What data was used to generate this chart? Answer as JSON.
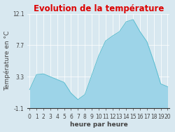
{
  "title": "Evolution de la température",
  "xlabel": "heure par heure",
  "ylabel": "Température en °C",
  "background_color": "#d8e8f0",
  "plot_bg_color": "#d8e8f0",
  "line_color": "#5bbdd0",
  "fill_color": "#9dd4e8",
  "title_color": "#dd0000",
  "axis_label_color": "#444444",
  "tick_color": "#444444",
  "grid_color": "#ffffff",
  "ylim": [
    -1.1,
    12.1
  ],
  "yticks": [
    -1.1,
    3.3,
    7.7,
    12.1
  ],
  "ytick_labels": [
    "-1.1",
    "3.3",
    "7.7",
    "12.1"
  ],
  "hours": [
    0,
    1,
    2,
    3,
    4,
    5,
    6,
    7,
    8,
    9,
    10,
    11,
    12,
    13,
    14,
    15,
    16,
    17,
    18,
    19,
    20
  ],
  "temperatures": [
    1.5,
    3.6,
    3.7,
    3.3,
    2.9,
    2.5,
    1.0,
    0.1,
    0.8,
    3.5,
    6.2,
    8.3,
    9.0,
    9.6,
    11.0,
    11.3,
    9.6,
    8.2,
    5.4,
    2.3,
    1.9
  ],
  "title_fontsize": 8.5,
  "axis_fontsize": 6.5,
  "tick_fontsize": 5.5
}
